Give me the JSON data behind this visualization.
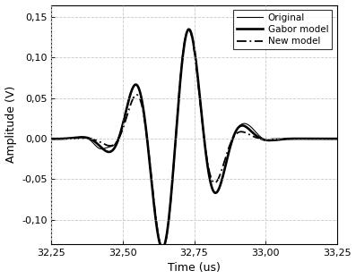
{
  "xlabel": "Time (us)",
  "ylabel": "Amplitude (V)",
  "xlim": [
    32.25,
    33.25
  ],
  "ylim": [
    -0.13,
    0.165
  ],
  "yticks": [
    -0.1,
    -0.05,
    0.0,
    0.05,
    0.1,
    0.15
  ],
  "xticks": [
    32.25,
    32.5,
    32.75,
    33.0,
    33.25
  ],
  "xtick_labels": [
    "32,25",
    "32,50",
    "32,75",
    "33,00",
    "33,25"
  ],
  "ytick_labels": [
    "-0,10",
    "-0,05",
    "0,00",
    "0,05",
    "0,10",
    "0,15"
  ],
  "legend_labels": [
    "Original",
    "Gabor model",
    "New model"
  ],
  "t0_main": 32.685,
  "sigma_gabor": 0.115,
  "sigma_new": 0.1,
  "f0": 5.0,
  "peak_amp": 0.135,
  "background_color": "#ffffff",
  "grid_color": "#c8c8c8",
  "line_color": "#000000"
}
